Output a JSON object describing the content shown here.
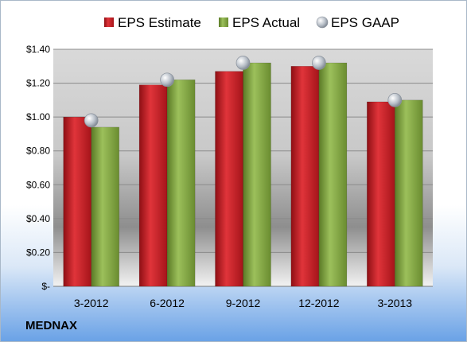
{
  "company": "MEDNAX",
  "chart_data": {
    "type": "bar",
    "categories": [
      "3-2012",
      "6-2012",
      "9-2012",
      "12-2012",
      "3-2013"
    ],
    "series": [
      {
        "name": "EPS Estimate",
        "values": [
          1.0,
          1.19,
          1.27,
          1.3,
          1.09
        ],
        "color": "#cc2229"
      },
      {
        "name": "EPS Actual",
        "values": [
          0.94,
          1.22,
          1.32,
          1.32,
          1.1
        ],
        "color": "#86a84a"
      }
    ],
    "gaap": {
      "name": "EPS GAAP",
      "values": [
        0.98,
        1.22,
        1.32,
        1.32,
        1.1
      ],
      "color": "#b8bfc8"
    },
    "ylim": [
      0,
      1.4
    ],
    "yticks": [
      0,
      0.2,
      0.4,
      0.6,
      0.8,
      1.0,
      1.2,
      1.4
    ],
    "ytick_labels": [
      "$-",
      "$0.20",
      "$0.40",
      "$0.60",
      "$0.80",
      "$1.00",
      "$1.20",
      "$1.40"
    ],
    "grid": true,
    "legend_position": "top"
  }
}
